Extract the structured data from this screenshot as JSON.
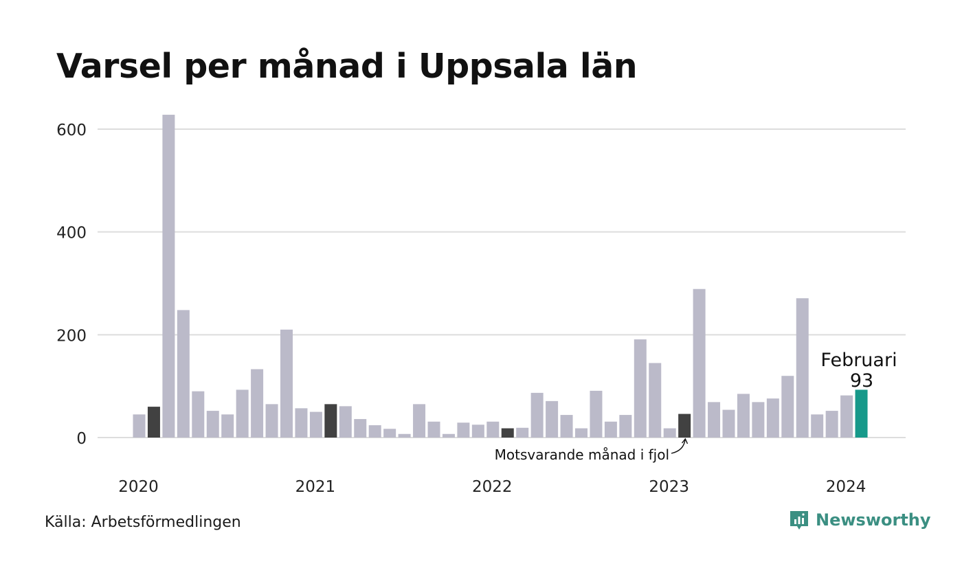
{
  "title": "Varsel per månad i Uppsala län",
  "source": "Källa: Arbetsförmedlingen",
  "brand": {
    "name": "Newsworthy",
    "icon": "bar-chart-logo-icon",
    "color": "#3b8f82"
  },
  "colors": {
    "bar": "#bbbac9",
    "comparison_bar": "#414141",
    "current_bar": "#17998a",
    "grid": "#dddddd",
    "text": "#111111"
  },
  "chart_data": {
    "type": "bar",
    "title": "Varsel per månad i Uppsala län",
    "xlabel": "",
    "ylabel": "",
    "ylim": [
      0,
      640
    ],
    "yticks": [
      0,
      200,
      400,
      600
    ],
    "grid": true,
    "x_tick_labels": [
      {
        "label": "2020",
        "month": "2020-01"
      },
      {
        "label": "2021",
        "month": "2021-01"
      },
      {
        "label": "2022",
        "month": "2022-01"
      },
      {
        "label": "2023",
        "month": "2023-01"
      },
      {
        "label": "2024",
        "month": "2024-01"
      }
    ],
    "categories": [
      "2020-01",
      "2020-02",
      "2020-03",
      "2020-04",
      "2020-05",
      "2020-06",
      "2020-07",
      "2020-08",
      "2020-09",
      "2020-10",
      "2020-11",
      "2020-12",
      "2021-01",
      "2021-02",
      "2021-03",
      "2021-04",
      "2021-05",
      "2021-06",
      "2021-07",
      "2021-08",
      "2021-09",
      "2021-10",
      "2021-11",
      "2021-12",
      "2022-01",
      "2022-02",
      "2022-03",
      "2022-04",
      "2022-05",
      "2022-06",
      "2022-07",
      "2022-08",
      "2022-09",
      "2022-10",
      "2022-11",
      "2022-12",
      "2023-01",
      "2023-02",
      "2023-03",
      "2023-04",
      "2023-05",
      "2023-06",
      "2023-07",
      "2023-08",
      "2023-09",
      "2023-10",
      "2023-11",
      "2023-12",
      "2024-01",
      "2024-02"
    ],
    "values": [
      45,
      60,
      628,
      248,
      90,
      52,
      45,
      93,
      133,
      65,
      210,
      57,
      50,
      65,
      61,
      36,
      24,
      17,
      7,
      65,
      31,
      7,
      29,
      25,
      31,
      18,
      19,
      87,
      71,
      44,
      18,
      91,
      31,
      44,
      191,
      145,
      18,
      46,
      289,
      69,
      54,
      85,
      69,
      76,
      120,
      271,
      45,
      52,
      82,
      93
    ],
    "highlight": {
      "comparison_months": [
        "2020-02",
        "2021-02",
        "2022-02",
        "2023-02"
      ],
      "current_month": "2024-02"
    },
    "annotations": {
      "current_label": "Februari",
      "current_value_label": "93",
      "comparison_label": "Motsvarande månad i fjol"
    }
  }
}
